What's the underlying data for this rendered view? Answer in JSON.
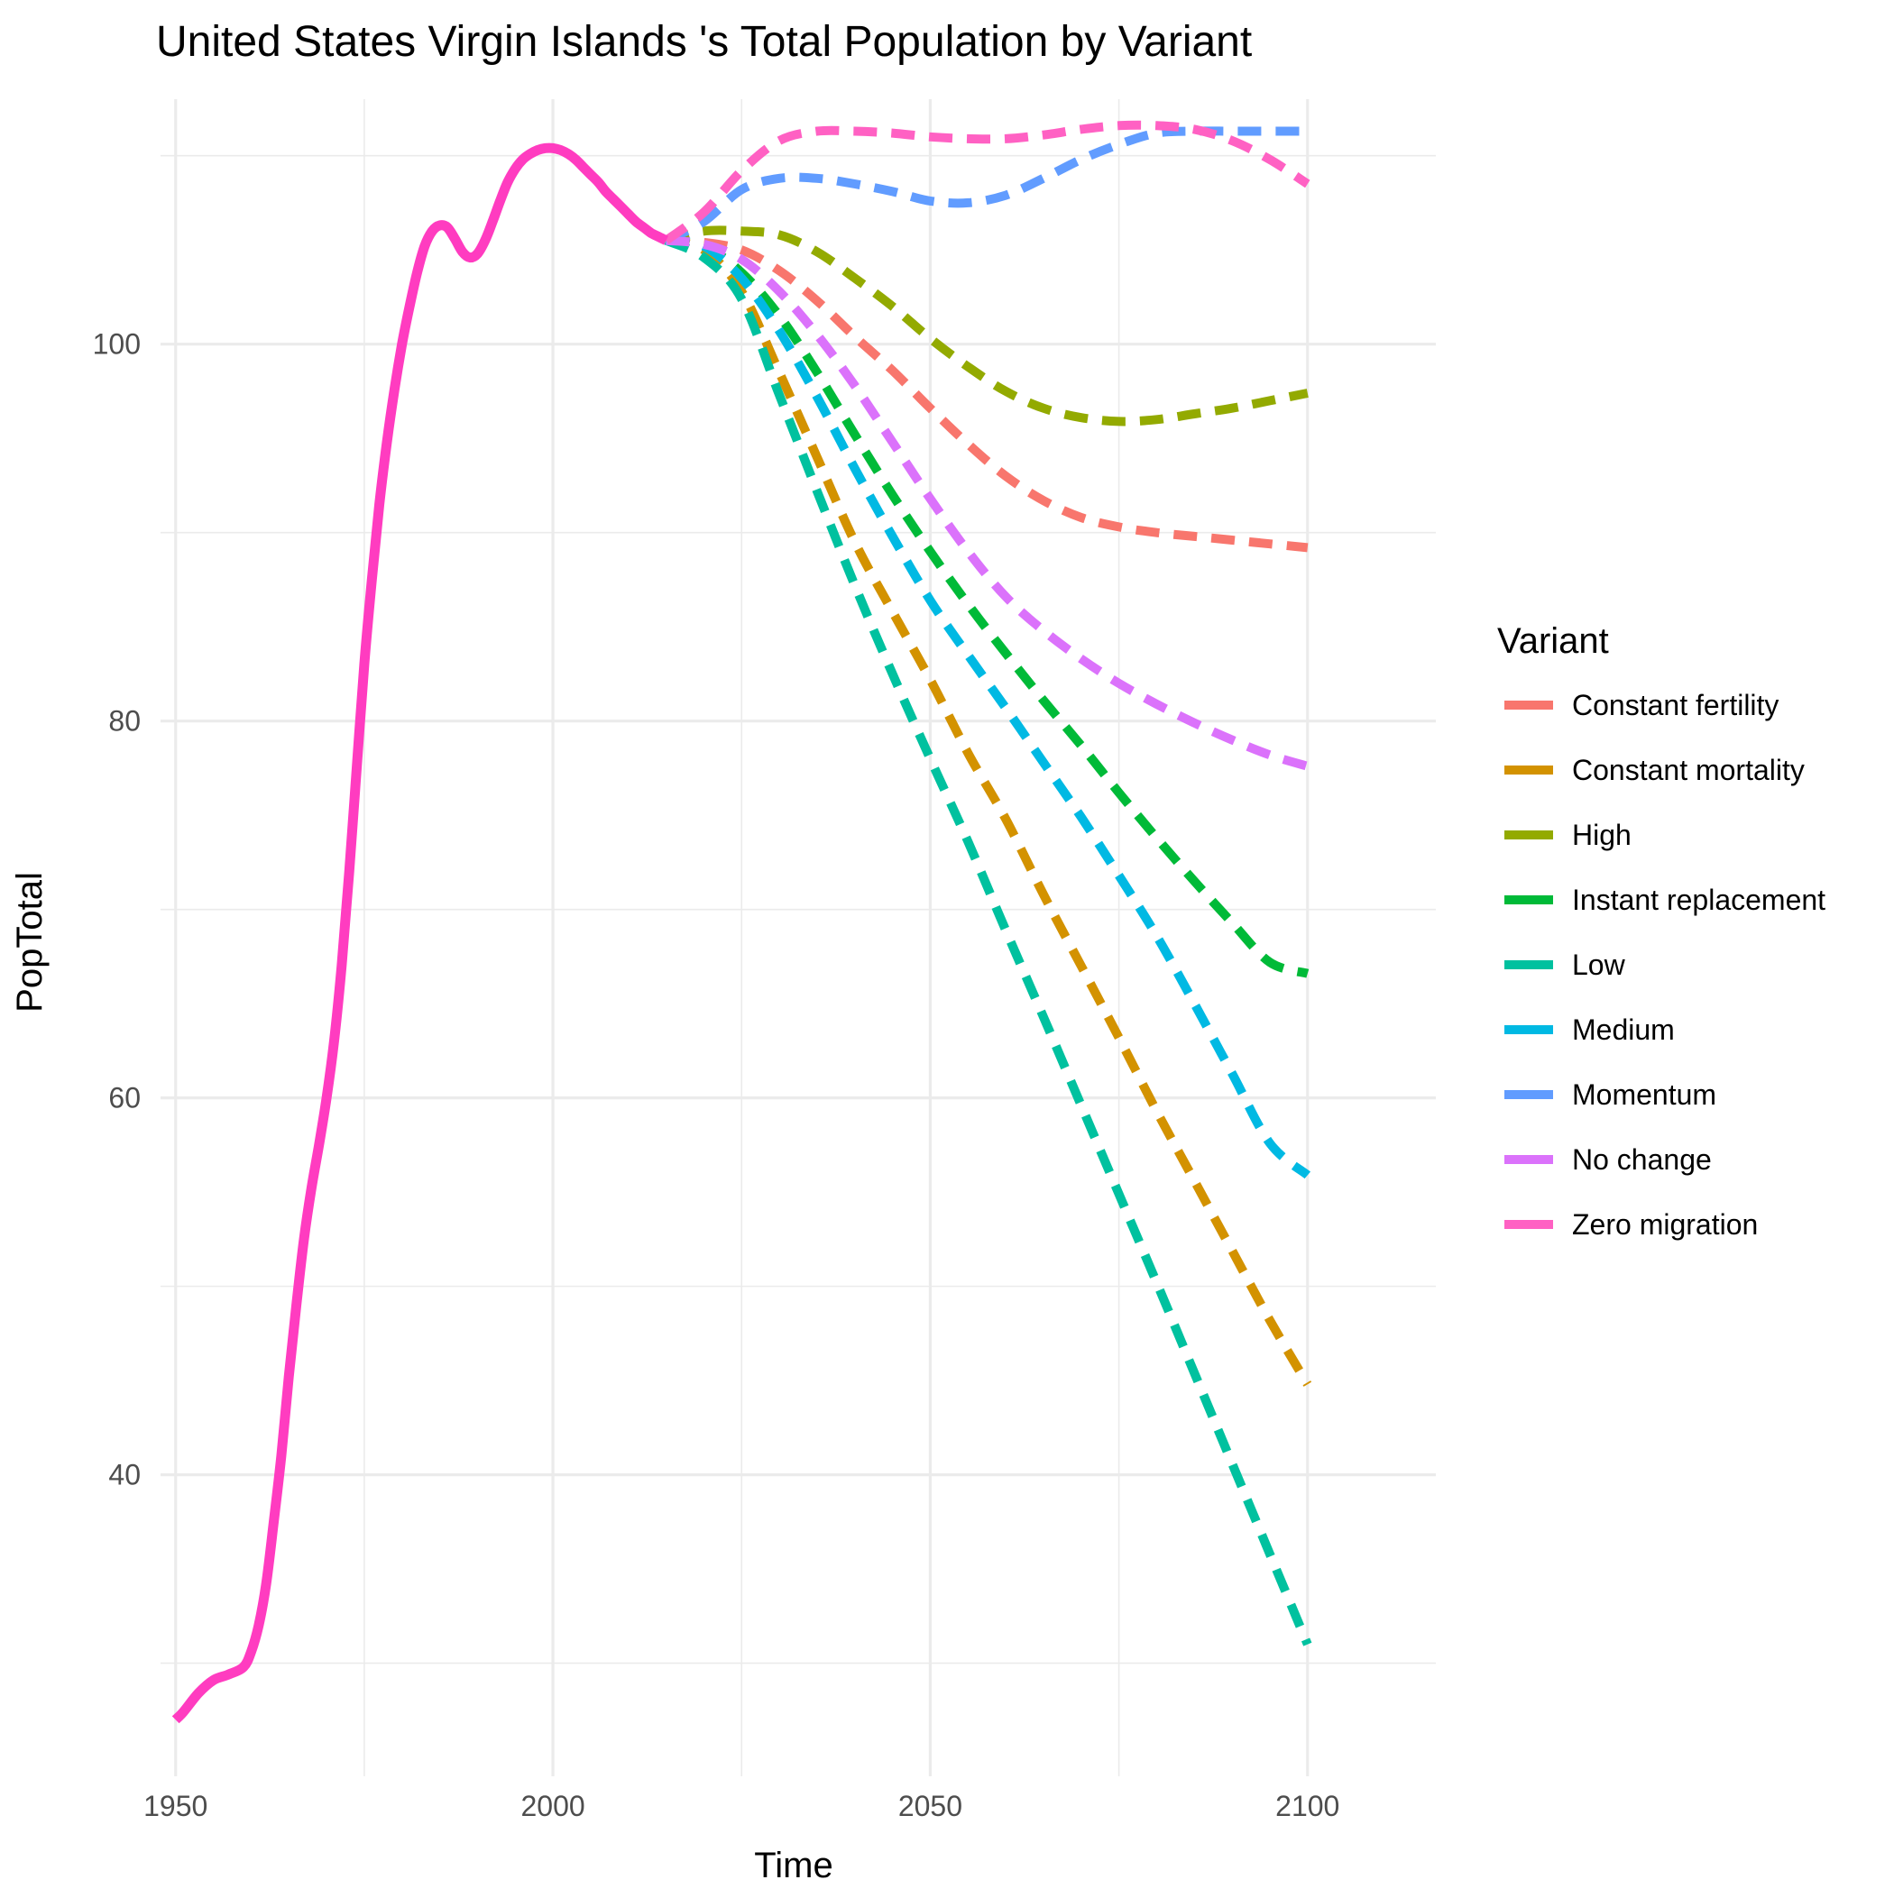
{
  "chart_data": {
    "type": "line",
    "title": "United States Virgin Islands 's Total Population by Variant",
    "xlabel": "Time",
    "ylabel": "PopTotal",
    "xlim": [
      1948,
      2117
    ],
    "ylim": [
      24,
      113
    ],
    "x_ticks": [
      1950,
      2000,
      2050,
      2100
    ],
    "x_tick_labels": [
      "1950",
      "2000",
      "2050",
      "2100"
    ],
    "y_ticks": [
      40,
      60,
      80,
      100
    ],
    "y_tick_labels": [
      "40",
      "60",
      "80",
      "100"
    ],
    "y_minor_ticks": [
      30,
      50,
      70,
      90,
      110
    ],
    "x_minor_ticks": [
      1975,
      2025,
      2075
    ],
    "grid": true,
    "legend": {
      "title": "Variant",
      "position": "right",
      "entries": [
        "Constant fertility",
        "Constant mortality",
        "High",
        "Instant replacement",
        "Low",
        "Medium",
        "Momentum",
        "No change",
        "Zero migration"
      ]
    },
    "historical": {
      "name": "Zero migration",
      "color": "#ff3cc0",
      "x": [
        1950,
        1951,
        1953,
        1955,
        1957,
        1959,
        1960,
        1961,
        1962,
        1963,
        1964,
        1965,
        1966,
        1967,
        1968,
        1969,
        1970,
        1971,
        1972,
        1973,
        1974,
        1975,
        1976,
        1977,
        1978,
        1979,
        1980,
        1981,
        1982,
        1983,
        1984,
        1985,
        1986,
        1987,
        1988,
        1989,
        1990,
        1991,
        1992,
        1993,
        1994,
        1995,
        1996,
        1997,
        1998,
        1999,
        2000,
        2001,
        2002,
        2003,
        2004,
        2005,
        2006,
        2007,
        2008,
        2009,
        2010,
        2011,
        2012,
        2013,
        2014,
        2015
      ],
      "y": [
        27.0,
        27.4,
        28.4,
        29.1,
        29.4,
        29.8,
        30.6,
        32.0,
        34.2,
        37.5,
        41.0,
        45.2,
        49.0,
        52.5,
        55.2,
        57.5,
        60.0,
        63.0,
        67.0,
        72.0,
        77.5,
        83.0,
        87.5,
        91.5,
        94.8,
        97.6,
        100.0,
        102.0,
        103.8,
        105.2,
        106.0,
        106.3,
        106.2,
        105.6,
        104.9,
        104.6,
        104.8,
        105.5,
        106.5,
        107.6,
        108.6,
        109.3,
        109.8,
        110.1,
        110.3,
        110.4,
        110.4,
        110.3,
        110.1,
        109.8,
        109.4,
        109.0,
        108.6,
        108.1,
        107.7,
        107.3,
        106.9,
        106.5,
        106.2,
        105.9,
        105.7,
        105.5
      ]
    },
    "x": [
      2015,
      2020,
      2025,
      2030,
      2035,
      2040,
      2045,
      2050,
      2055,
      2060,
      2065,
      2070,
      2075,
      2080,
      2085,
      2090,
      2095,
      2100
    ],
    "series": [
      {
        "name": "Constant fertility",
        "color": "#f8766d",
        "values": [
          105.5,
          105.4,
          105.0,
          103.9,
          102.3,
          100.4,
          98.6,
          96.6,
          94.7,
          93.0,
          91.7,
          90.8,
          90.3,
          90.0,
          89.8,
          89.6,
          89.4,
          89.2
        ]
      },
      {
        "name": "Constant mortality",
        "color": "#d39200",
        "values": [
          105.5,
          105.0,
          102.8,
          98.5,
          94.0,
          89.5,
          85.8,
          82.2,
          78.3,
          74.8,
          70.8,
          67.0,
          63.2,
          59.3,
          55.6,
          51.9,
          48.2,
          44.8
        ]
      },
      {
        "name": "High",
        "color": "#93aa00",
        "values": [
          105.5,
          106.0,
          106.0,
          105.8,
          104.9,
          103.5,
          102.0,
          100.3,
          98.8,
          97.5,
          96.6,
          96.1,
          95.9,
          96.0,
          96.3,
          96.6,
          97.0,
          97.4
        ]
      },
      {
        "name": "Instant replacement",
        "color": "#00ba38",
        "values": [
          105.5,
          105.2,
          103.8,
          101.5,
          98.5,
          95.2,
          92.0,
          89.0,
          86.2,
          83.6,
          81.1,
          78.7,
          76.2,
          73.8,
          71.5,
          69.3,
          67.2,
          66.6
        ]
      },
      {
        "name": "Low",
        "color": "#00c19f",
        "values": [
          105.5,
          104.6,
          102.4,
          97.3,
          92.2,
          87.2,
          82.5,
          78.0,
          73.6,
          68.9,
          64.3,
          59.6,
          54.9,
          50.2,
          45.4,
          40.6,
          35.8,
          31.0
        ]
      },
      {
        "name": "Medium",
        "color": "#00b9e3",
        "values": [
          105.5,
          105.2,
          103.5,
          100.7,
          97.2,
          93.4,
          89.8,
          86.4,
          83.5,
          80.7,
          77.8,
          74.9,
          71.8,
          68.6,
          65.0,
          61.3,
          57.6,
          55.9
        ]
      },
      {
        "name": "Momentum",
        "color": "#619cff",
        "values": [
          105.5,
          106.5,
          108.2,
          108.8,
          108.8,
          108.5,
          108.1,
          107.6,
          107.5,
          107.9,
          108.8,
          109.8,
          110.6,
          111.2,
          111.3,
          111.3,
          111.3,
          111.3
        ]
      },
      {
        "name": "No change",
        "color": "#db72fb",
        "values": [
          105.5,
          105.3,
          104.5,
          102.8,
          100.5,
          97.8,
          94.8,
          91.8,
          89.0,
          86.6,
          84.8,
          83.3,
          82.0,
          80.9,
          79.9,
          79.0,
          78.2,
          77.6
        ]
      },
      {
        "name": "Zero migration",
        "color": "#ff61c3",
        "values": [
          105.5,
          107.0,
          109.2,
          110.8,
          111.3,
          111.3,
          111.2,
          111.0,
          110.9,
          110.9,
          111.1,
          111.4,
          111.6,
          111.6,
          111.4,
          110.8,
          109.8,
          108.5
        ]
      }
    ]
  }
}
